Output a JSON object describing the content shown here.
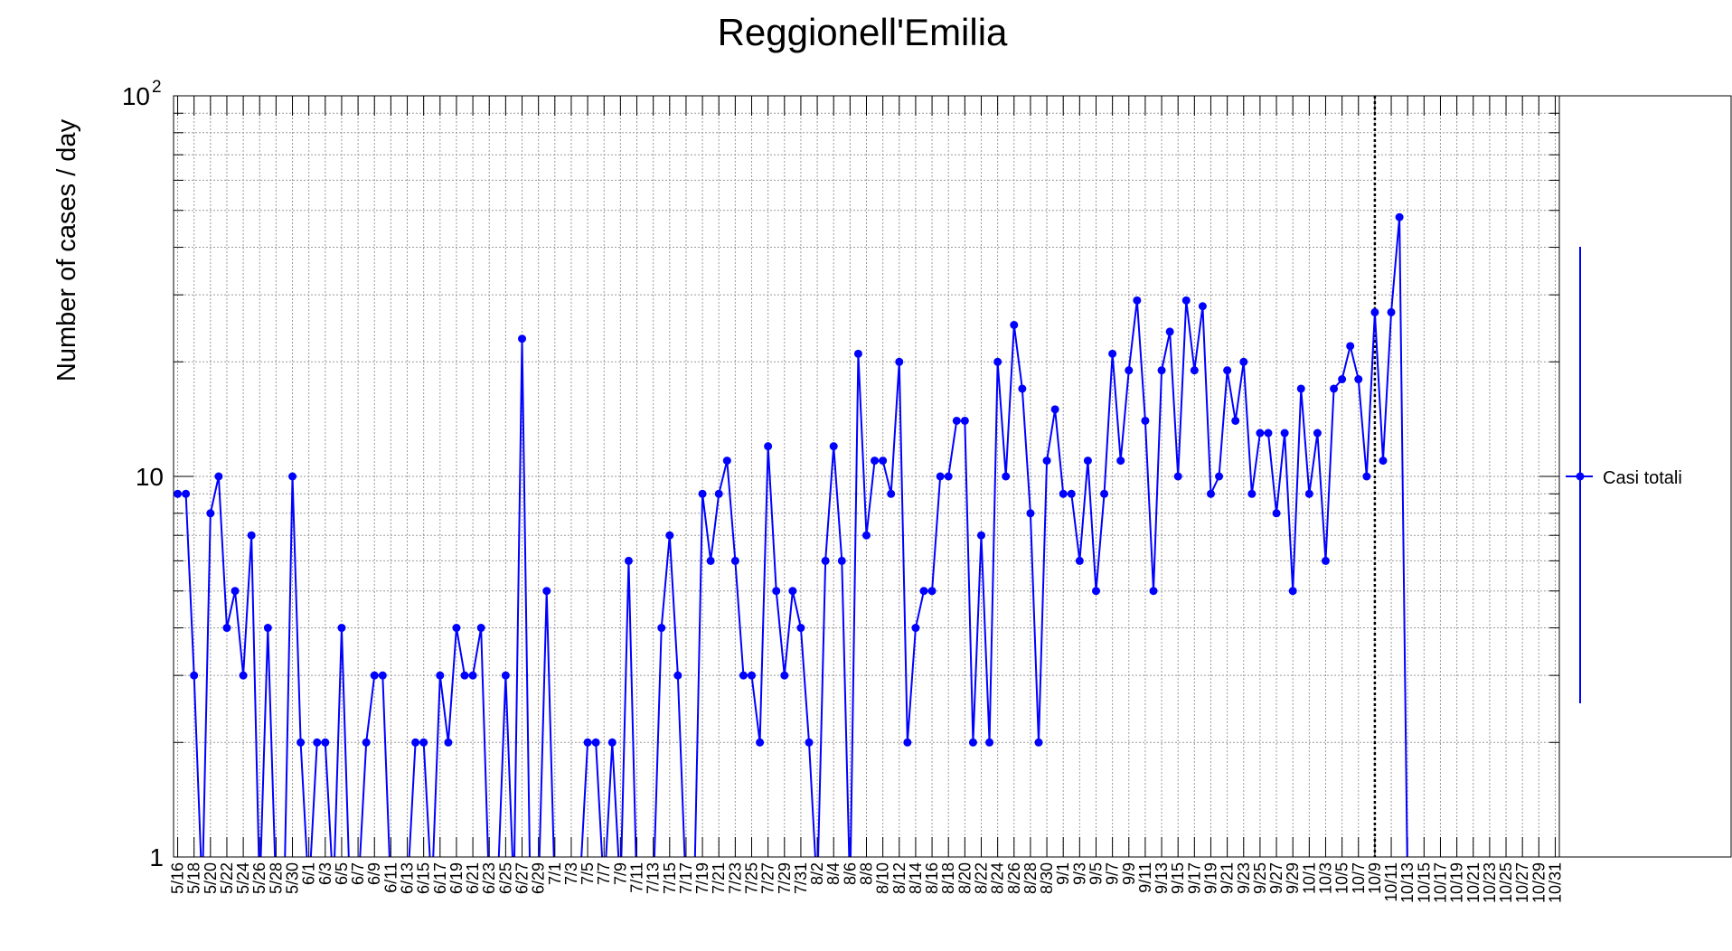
{
  "chart_data": {
    "type": "line",
    "title": "Reggionell'Emilia",
    "xlabel": "",
    "ylabel": "Number of cases / day",
    "y_scale": "log",
    "ylim": [
      1,
      100
    ],
    "y_tick_labels": {
      "major_low": "1",
      "major_mid": "10",
      "major_top_base": "10",
      "major_top_exp": "2"
    },
    "grid": true,
    "legend_position": "right",
    "x_tick_labels": [
      "5/16",
      "5/18",
      "5/20",
      "5/22",
      "5/24",
      "5/26",
      "5/28",
      "5/30",
      "6/1",
      "6/3",
      "6/5",
      "6/7",
      "6/9",
      "6/11",
      "6/13",
      "6/15",
      "6/17",
      "6/19",
      "6/21",
      "6/23",
      "6/25",
      "6/27",
      "6/29",
      "7/1",
      "7/3",
      "7/5",
      "7/7",
      "7/9",
      "7/11",
      "7/13",
      "7/15",
      "7/17",
      "7/19",
      "7/21",
      "7/23",
      "7/25",
      "7/27",
      "7/29",
      "7/31",
      "8/2",
      "8/4",
      "8/6",
      "8/8",
      "8/10",
      "8/12",
      "8/14",
      "8/16",
      "8/18",
      "8/20",
      "8/22",
      "8/24",
      "8/26",
      "8/28",
      "8/30",
      "9/1",
      "9/3",
      "9/5",
      "9/7",
      "9/9",
      "9/11",
      "9/13",
      "9/15",
      "9/17",
      "9/19",
      "9/21",
      "9/23",
      "9/25",
      "9/27",
      "9/29",
      "10/1",
      "10/3",
      "10/5",
      "10/7",
      "10/9",
      "10/11",
      "10/13",
      "10/15",
      "10/17",
      "10/19",
      "10/21",
      "10/23",
      "10/25",
      "10/27",
      "10/29",
      "10/31"
    ],
    "x_start_date": "5/16",
    "axis_end_date": "10/31",
    "marker_date": "10/9",
    "series": [
      {
        "name": "Casi totali",
        "color": "#0000ff",
        "values": [
          9,
          9,
          3,
          0,
          8,
          10,
          4,
          5,
          3,
          7,
          0,
          4,
          0,
          0,
          10,
          2,
          0,
          2,
          2,
          0,
          4,
          0,
          0,
          2,
          3,
          3,
          0,
          0,
          0,
          2,
          2,
          0,
          3,
          2,
          4,
          3,
          3,
          4,
          0,
          0,
          3,
          0,
          23,
          0,
          0,
          5,
          0,
          0,
          0,
          0,
          2,
          2,
          0,
          2,
          0,
          6,
          0,
          0,
          0,
          4,
          7,
          3,
          0,
          0,
          9,
          6,
          9,
          11,
          6,
          3,
          3,
          2,
          12,
          5,
          3,
          5,
          4,
          2,
          0,
          6,
          12,
          6,
          0,
          21,
          7,
          11,
          11,
          9,
          20,
          2,
          4,
          5,
          5,
          10,
          10,
          14,
          14,
          2,
          7,
          2,
          20,
          10,
          25,
          17,
          8,
          2,
          11,
          15,
          9,
          9,
          6,
          11,
          5,
          9,
          21,
          11,
          19,
          29,
          14,
          5,
          19,
          24,
          10,
          29,
          19,
          28,
          9,
          10,
          19,
          14,
          20,
          9,
          13,
          13,
          8,
          13,
          5,
          17,
          9,
          13,
          6,
          17,
          18,
          22,
          18,
          10,
          27,
          11,
          27,
          48,
          0
        ]
      }
    ]
  }
}
